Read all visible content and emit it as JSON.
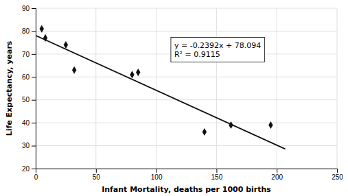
{
  "chart_data": {
    "type": "scatter",
    "xlabel": "Infant Mortality, deaths per 1000 births",
    "ylabel": "Life Expectancy, years",
    "xlim": [
      0,
      250
    ],
    "ylim": [
      20,
      90
    ],
    "xticks": [
      0,
      50,
      100,
      150,
      200,
      250
    ],
    "yticks": [
      20,
      30,
      40,
      50,
      60,
      70,
      80,
      90
    ],
    "grid": true,
    "series": [
      {
        "type": "scatter",
        "marker": "diamond",
        "color": "#111111",
        "x": [
          5,
          8,
          25,
          32,
          80,
          85,
          140,
          162,
          195
        ],
        "values": [
          81,
          77,
          74,
          63,
          61,
          62,
          36,
          39,
          39
        ]
      },
      {
        "type": "line",
        "color": "#111111",
        "x": [
          0,
          207
        ],
        "values": [
          78.094,
          28.5796
        ]
      }
    ],
    "annotations": [
      {
        "x": 115,
        "y": 72,
        "lines": [
          "y = -0.2392x + 78.094",
          "R² = 0.9115"
        ]
      }
    ]
  }
}
